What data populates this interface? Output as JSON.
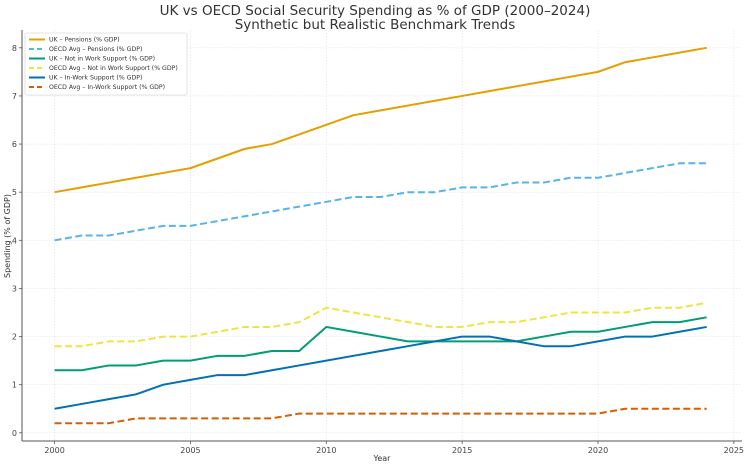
{
  "chart_data": {
    "type": "line",
    "title": "UK vs OECD Social Security Spending as % of GDP (2000–2024)",
    "subtitle": "Synthetic but Realistic Benchmark Trends",
    "xlabel": "Year",
    "ylabel": "Spending (% of GDP)",
    "xlim": [
      1998.8,
      2025.3
    ],
    "ylim": [
      -0.17,
      8.37
    ],
    "xticks": [
      2000,
      2005,
      2010,
      2015,
      2020,
      2025
    ],
    "yticks": [
      0,
      1,
      2,
      3,
      4,
      5,
      6,
      7,
      8
    ],
    "grid": true,
    "legend_position": "top-left",
    "x": [
      2000,
      2001,
      2002,
      2003,
      2004,
      2005,
      2006,
      2007,
      2008,
      2009,
      2010,
      2011,
      2012,
      2013,
      2014,
      2015,
      2016,
      2017,
      2018,
      2019,
      2020,
      2021,
      2022,
      2023,
      2024
    ],
    "series": [
      {
        "name": "UK – Pensions (% GDP)",
        "color": "#E69F00",
        "style": "solid",
        "values": [
          5.0,
          5.1,
          5.2,
          5.3,
          5.4,
          5.5,
          5.7,
          5.9,
          6.0,
          6.2,
          6.4,
          6.6,
          6.7,
          6.8,
          6.9,
          7.0,
          7.1,
          7.2,
          7.3,
          7.4,
          7.5,
          7.7,
          7.8,
          7.9,
          8.0
        ]
      },
      {
        "name": "OECD Avg – Pensions (% GDP)",
        "color": "#56B4E9",
        "style": "dashed",
        "values": [
          4.0,
          4.1,
          4.1,
          4.2,
          4.3,
          4.3,
          4.4,
          4.5,
          4.6,
          4.7,
          4.8,
          4.9,
          4.9,
          5.0,
          5.0,
          5.1,
          5.1,
          5.2,
          5.2,
          5.3,
          5.3,
          5.4,
          5.5,
          5.6,
          5.6
        ]
      },
      {
        "name": "UK – Not in Work Support (% GDP)",
        "color": "#009E73",
        "style": "solid",
        "values": [
          1.3,
          1.3,
          1.4,
          1.4,
          1.5,
          1.5,
          1.6,
          1.6,
          1.7,
          1.7,
          2.2,
          2.1,
          2.0,
          1.9,
          1.9,
          1.9,
          1.9,
          1.9,
          2.0,
          2.1,
          2.1,
          2.2,
          2.3,
          2.3,
          2.4
        ]
      },
      {
        "name": "OECD Avg – Not in Work Support (% GDP)",
        "color": "#F0E442",
        "style": "dashed",
        "values": [
          1.8,
          1.8,
          1.9,
          1.9,
          2.0,
          2.0,
          2.1,
          2.2,
          2.2,
          2.3,
          2.6,
          2.5,
          2.4,
          2.3,
          2.2,
          2.2,
          2.3,
          2.3,
          2.4,
          2.5,
          2.5,
          2.5,
          2.6,
          2.6,
          2.7
        ]
      },
      {
        "name": "UK – In-Work Support (% GDP)",
        "color": "#0072B2",
        "style": "solid",
        "values": [
          0.5,
          0.6,
          0.7,
          0.8,
          1.0,
          1.1,
          1.2,
          1.2,
          1.3,
          1.4,
          1.5,
          1.6,
          1.7,
          1.8,
          1.9,
          2.0,
          2.0,
          1.9,
          1.8,
          1.8,
          1.9,
          2.0,
          2.0,
          2.1,
          2.2
        ]
      },
      {
        "name": "OECD Avg – In-Work Support (% GDP)",
        "color": "#D55E00",
        "style": "dashed",
        "values": [
          0.2,
          0.2,
          0.2,
          0.3,
          0.3,
          0.3,
          0.3,
          0.3,
          0.3,
          0.4,
          0.4,
          0.4,
          0.4,
          0.4,
          0.4,
          0.4,
          0.4,
          0.4,
          0.4,
          0.4,
          0.4,
          0.5,
          0.5,
          0.5,
          0.5
        ]
      }
    ]
  }
}
